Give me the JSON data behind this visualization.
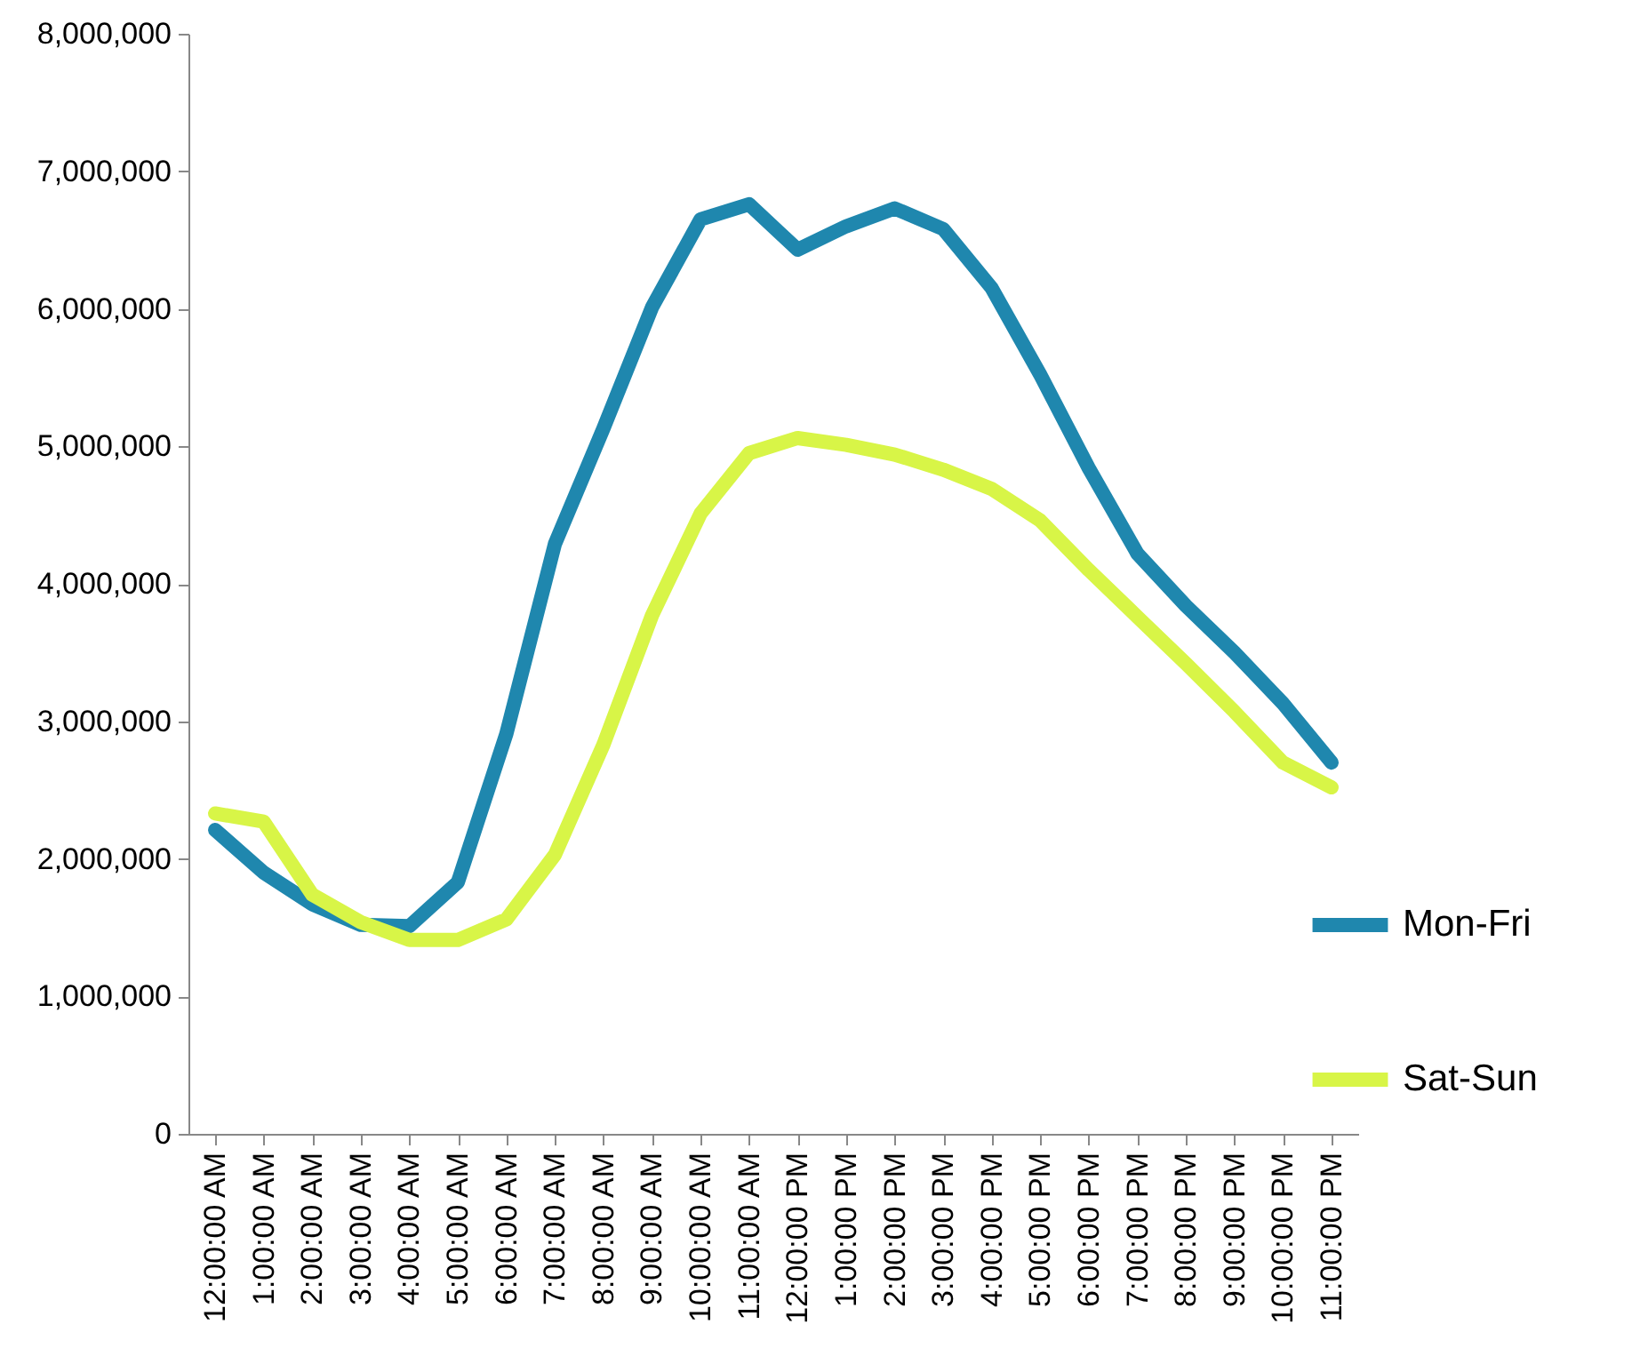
{
  "chart_data": {
    "type": "line",
    "categories": [
      "12:00:00 AM",
      "1:00:00 AM",
      "2:00:00 AM",
      "3:00:00 AM",
      "4:00:00 AM",
      "5:00:00 AM",
      "6:00:00 AM",
      "7:00:00 AM",
      "8:00:00 AM",
      "9:00:00 AM",
      "10:00:00 AM",
      "11:00:00 AM",
      "12:00:00 PM",
      "1:00:00 PM",
      "2:00:00 PM",
      "3:00:00 PM",
      "4:00:00 PM",
      "5:00:00 PM",
      "6:00:00 PM",
      "7:00:00 PM",
      "8:00:00 PM",
      "9:00:00 PM",
      "10:00:00 PM",
      "11:00:00 PM"
    ],
    "series": [
      {
        "name": "Mon-Fri",
        "color": "#1f87ae",
        "values": [
          2210000,
          1900000,
          1670000,
          1520000,
          1510000,
          1830000,
          2910000,
          4290000,
          5130000,
          6010000,
          6650000,
          6760000,
          6430000,
          6600000,
          6730000,
          6580000,
          6150000,
          5520000,
          4840000,
          4220000,
          3840000,
          3500000,
          3130000,
          2700000
        ]
      },
      {
        "name": "Sat-Sun",
        "color": "#d8f547",
        "values": [
          2330000,
          2270000,
          1740000,
          1540000,
          1410000,
          1410000,
          1560000,
          2030000,
          2830000,
          3770000,
          4510000,
          4950000,
          5060000,
          5010000,
          4940000,
          4830000,
          4690000,
          4460000,
          4100000,
          3760000,
          3420000,
          3070000,
          2700000,
          2520000
        ]
      }
    ],
    "ylim": [
      0,
      8000000
    ],
    "yticks": [
      0,
      {
        "value": 1000000,
        "label": "1,000,000"
      },
      {
        "value": 2000000,
        "label": "2,000,000"
      },
      {
        "value": 3000000,
        "label": "3,000,000"
      },
      {
        "value": 4000000,
        "label": "4,000,000"
      },
      {
        "value": 5000000,
        "label": "5,000,000"
      },
      {
        "value": 6000000,
        "label": "6,000,000"
      },
      {
        "value": 7000000,
        "label": "7,000,000"
      },
      {
        "value": 8000000,
        "label": "8,000,000"
      }
    ],
    "grid": false,
    "legend": "right",
    "marker": "none",
    "line_style": "solid"
  }
}
